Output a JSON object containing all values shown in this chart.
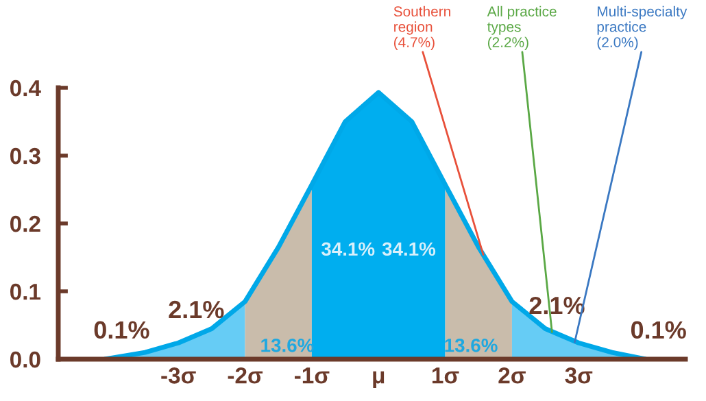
{
  "chart_data": {
    "type": "area",
    "xlim": [
      -4.8,
      4.6
    ],
    "ylim": [
      0,
      0.4
    ],
    "yticks": [
      {
        "value": 0,
        "label": "0.0"
      },
      {
        "value": 0.1,
        "label": "0.1"
      },
      {
        "value": 0.2,
        "label": "0.2"
      },
      {
        "value": 0.3,
        "label": "0.3"
      },
      {
        "value": 0.4,
        "label": "0.4"
      }
    ],
    "xticks": [
      {
        "value": -3,
        "label": "-3σ"
      },
      {
        "value": -2,
        "label": "-2σ"
      },
      {
        "value": -1,
        "label": "-1σ"
      },
      {
        "value": 0,
        "label": "μ"
      },
      {
        "value": 1,
        "label": "1σ"
      },
      {
        "value": 2,
        "label": "2σ"
      },
      {
        "value": 3,
        "label": "3σ"
      }
    ],
    "grid": false,
    "legend": false,
    "series": [
      {
        "color": "#66ccf5",
        "x": [
          -4.1,
          -3.5,
          -3,
          -2.5,
          -2
        ],
        "values": [
          0,
          0.01,
          0.024,
          0.045,
          0.085
        ]
      },
      {
        "color": "#c9bcab",
        "x": [
          -2,
          -1.5,
          -1
        ],
        "values": [
          0.085,
          0.165,
          0.257
        ]
      },
      {
        "color": "#00aeef",
        "x": [
          -1,
          -0.5,
          0,
          0.5,
          1
        ],
        "values": [
          0.257,
          0.35,
          0.393,
          0.35,
          0.257
        ]
      },
      {
        "color": "#c9bcab",
        "x": [
          1,
          1.5,
          2
        ],
        "values": [
          0.257,
          0.165,
          0.085
        ]
      },
      {
        "color": "#66ccf5",
        "x": [
          2,
          2.5,
          3,
          3.5,
          4.0
        ],
        "values": [
          0.085,
          0.045,
          0.024,
          0.01,
          0
        ]
      },
      {
        "type": "line",
        "color": "#00a8e8",
        "x": [
          -4.1,
          -3.5,
          -3,
          -2.5,
          -2,
          -1.5,
          -1,
          -0.5,
          0,
          0.5,
          1,
          1.5,
          2,
          2.5,
          3,
          3.5,
          4.0
        ],
        "values": [
          0,
          0.01,
          0.024,
          0.045,
          0.085,
          0.165,
          0.257,
          0.35,
          0.393,
          0.35,
          0.257,
          0.165,
          0.085,
          0.045,
          0.024,
          0.01,
          0
        ]
      }
    ],
    "annotations": [
      "0.1%",
      "2.1%",
      "13.6%",
      "34.1%",
      "34.1%",
      "13.6%",
      "2.1%",
      "0.1%",
      {
        "text": "Southern\nregion\n(4.7%)",
        "x": 1.57,
        "y": 0.154
      },
      {
        "text": "All practice\ntypes\n(2.2%)",
        "x": 2.6,
        "y": 0.04
      },
      {
        "text": "Multi-specialty\npractice\n(2.0%)",
        "x": 2.94,
        "y": 0.025
      }
    ]
  }
}
